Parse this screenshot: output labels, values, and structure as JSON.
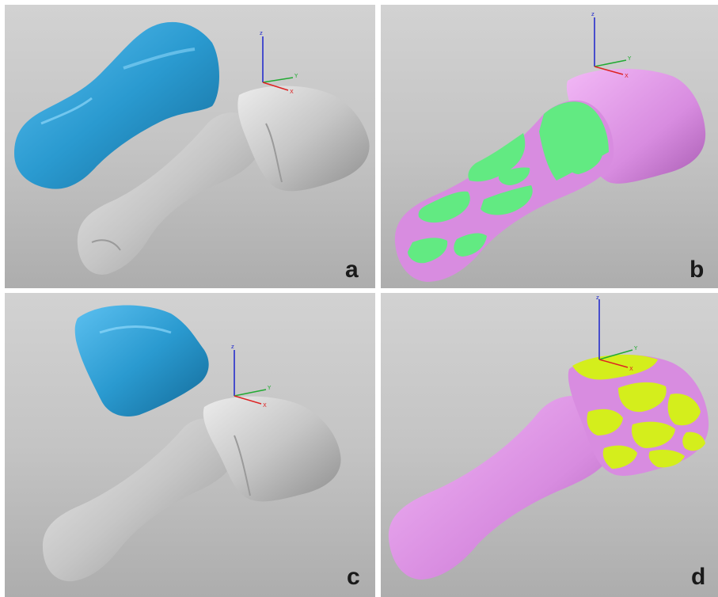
{
  "figure": {
    "panels": [
      {
        "letter": "a",
        "axes": {
          "z": "z",
          "y": "Y",
          "x": "X"
        }
      },
      {
        "letter": "b",
        "axes": {
          "z": "z",
          "y": "Y",
          "x": "X"
        }
      },
      {
        "letter": "c",
        "axes": {
          "z": "z",
          "y": "Y",
          "x": "X"
        }
      },
      {
        "letter": "d",
        "axes": {
          "z": "z",
          "y": "Y",
          "x": "X"
        }
      }
    ]
  },
  "colors": {
    "background_top": "#d2d2d2",
    "background_bottom": "#adadad",
    "bone_gray": "#c8c8c8",
    "bone_blue": "#2a9ad0",
    "overlay_pink": "#d88ce0",
    "overlay_green": "#62ea82",
    "overlay_yellow": "#d4ee1c",
    "axis_z": "#1a22cc",
    "axis_x": "#dd2222",
    "axis_y": "#22aa33"
  }
}
